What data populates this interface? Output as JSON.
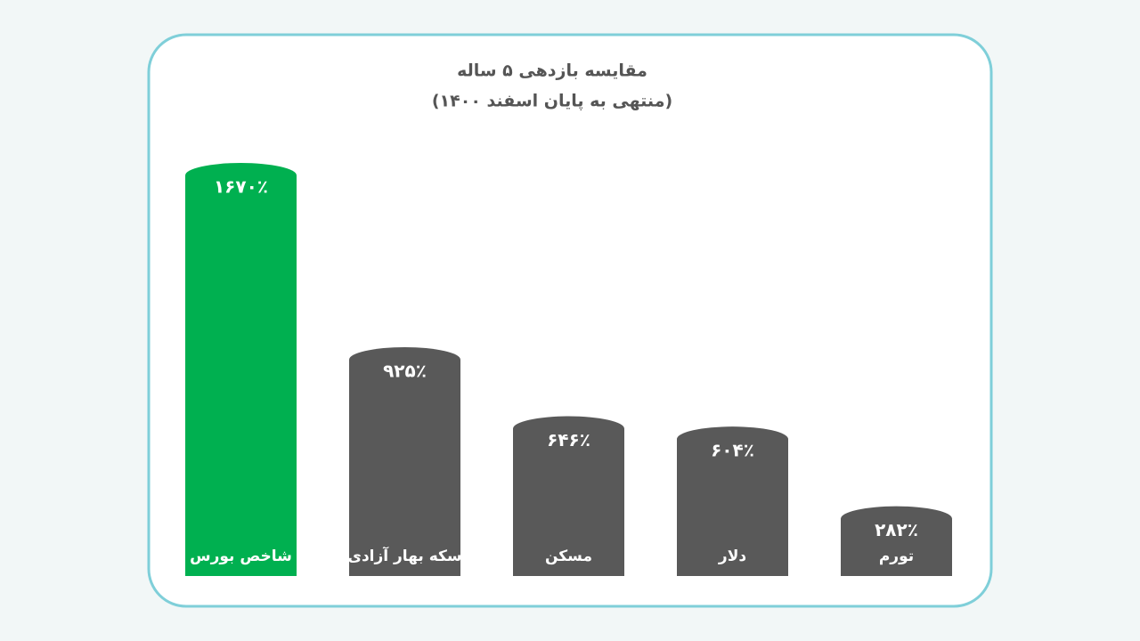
{
  "chart_data": {
    "type": "bar",
    "title": "مقایسه بازدهی ۵ ساله",
    "subtitle": "(منتهی به پایان اسفند ۱۴۰۰)",
    "categories": [
      "شاخص بورس",
      "سکه بهار آزادی",
      "مسکن",
      "دلار",
      "تورم"
    ],
    "values": [
      1670,
      925,
      646,
      604,
      282
    ],
    "value_labels": [
      "۱۶۷۰٪",
      "۹۲۵٪",
      "۶۴۶٪",
      "۶۰۴٪",
      "۲۸۲٪"
    ],
    "colors": [
      "#00b050",
      "#595959",
      "#595959",
      "#595959",
      "#595959"
    ]
  }
}
